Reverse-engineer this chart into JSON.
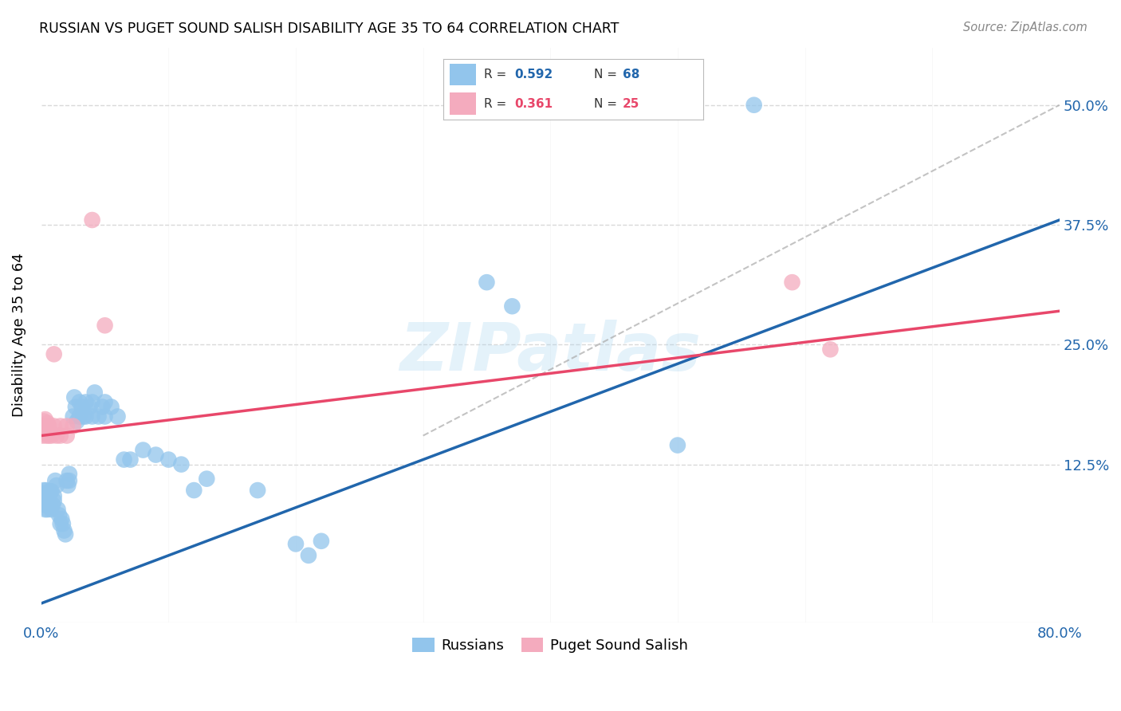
{
  "title": "RUSSIAN VS PUGET SOUND SALISH DISABILITY AGE 35 TO 64 CORRELATION CHART",
  "source": "Source: ZipAtlas.com",
  "ylabel_label": "Disability Age 35 to 64",
  "blue_color": "#92C5EC",
  "pink_color": "#F4ABBE",
  "blue_line_color": "#2166AC",
  "pink_line_color": "#E8476A",
  "watermark": "ZIPatlas",
  "xlim": [
    0.0,
    0.8
  ],
  "ylim": [
    -0.04,
    0.56
  ],
  "blue_regression": [
    0.0,
    0.8,
    -0.02,
    0.38
  ],
  "pink_regression": [
    0.0,
    0.8,
    0.155,
    0.285
  ],
  "diag_line": [
    [
      0.3,
      0.8
    ],
    [
      0.155,
      0.5
    ]
  ],
  "blue_scatter": [
    [
      0.001,
      0.095
    ],
    [
      0.002,
      0.085
    ],
    [
      0.002,
      0.098
    ],
    [
      0.003,
      0.09
    ],
    [
      0.003,
      0.078
    ],
    [
      0.004,
      0.082
    ],
    [
      0.004,
      0.088
    ],
    [
      0.004,
      0.098
    ],
    [
      0.005,
      0.093
    ],
    [
      0.005,
      0.078
    ],
    [
      0.006,
      0.088
    ],
    [
      0.006,
      0.093
    ],
    [
      0.007,
      0.083
    ],
    [
      0.007,
      0.097
    ],
    [
      0.008,
      0.078
    ],
    [
      0.008,
      0.097
    ],
    [
      0.009,
      0.083
    ],
    [
      0.01,
      0.092
    ],
    [
      0.01,
      0.087
    ],
    [
      0.011,
      0.108
    ],
    [
      0.012,
      0.103
    ],
    [
      0.013,
      0.078
    ],
    [
      0.014,
      0.072
    ],
    [
      0.015,
      0.063
    ],
    [
      0.016,
      0.068
    ],
    [
      0.017,
      0.063
    ],
    [
      0.018,
      0.056
    ],
    [
      0.019,
      0.052
    ],
    [
      0.02,
      0.108
    ],
    [
      0.021,
      0.103
    ],
    [
      0.022,
      0.115
    ],
    [
      0.022,
      0.108
    ],
    [
      0.025,
      0.175
    ],
    [
      0.026,
      0.195
    ],
    [
      0.027,
      0.185
    ],
    [
      0.028,
      0.17
    ],
    [
      0.03,
      0.19
    ],
    [
      0.03,
      0.175
    ],
    [
      0.032,
      0.185
    ],
    [
      0.033,
      0.175
    ],
    [
      0.035,
      0.19
    ],
    [
      0.035,
      0.175
    ],
    [
      0.038,
      0.185
    ],
    [
      0.04,
      0.19
    ],
    [
      0.04,
      0.175
    ],
    [
      0.042,
      0.2
    ],
    [
      0.045,
      0.175
    ],
    [
      0.048,
      0.185
    ],
    [
      0.05,
      0.175
    ],
    [
      0.05,
      0.19
    ],
    [
      0.055,
      0.185
    ],
    [
      0.06,
      0.175
    ],
    [
      0.065,
      0.13
    ],
    [
      0.07,
      0.13
    ],
    [
      0.08,
      0.14
    ],
    [
      0.09,
      0.135
    ],
    [
      0.1,
      0.13
    ],
    [
      0.11,
      0.125
    ],
    [
      0.12,
      0.098
    ],
    [
      0.13,
      0.11
    ],
    [
      0.17,
      0.098
    ],
    [
      0.2,
      0.042
    ],
    [
      0.21,
      0.03
    ],
    [
      0.22,
      0.045
    ],
    [
      0.35,
      0.315
    ],
    [
      0.37,
      0.29
    ],
    [
      0.5,
      0.145
    ],
    [
      0.56,
      0.5
    ]
  ],
  "pink_scatter": [
    [
      0.001,
      0.165
    ],
    [
      0.001,
      0.155
    ],
    [
      0.002,
      0.17
    ],
    [
      0.002,
      0.162
    ],
    [
      0.003,
      0.172
    ],
    [
      0.003,
      0.158
    ],
    [
      0.004,
      0.162
    ],
    [
      0.004,
      0.155
    ],
    [
      0.005,
      0.168
    ],
    [
      0.006,
      0.155
    ],
    [
      0.006,
      0.165
    ],
    [
      0.007,
      0.158
    ],
    [
      0.008,
      0.155
    ],
    [
      0.01,
      0.165
    ],
    [
      0.012,
      0.155
    ],
    [
      0.015,
      0.165
    ],
    [
      0.015,
      0.155
    ],
    [
      0.02,
      0.165
    ],
    [
      0.02,
      0.155
    ],
    [
      0.025,
      0.165
    ],
    [
      0.04,
      0.38
    ],
    [
      0.05,
      0.27
    ],
    [
      0.59,
      0.315
    ],
    [
      0.62,
      0.245
    ],
    [
      0.01,
      0.24
    ]
  ]
}
